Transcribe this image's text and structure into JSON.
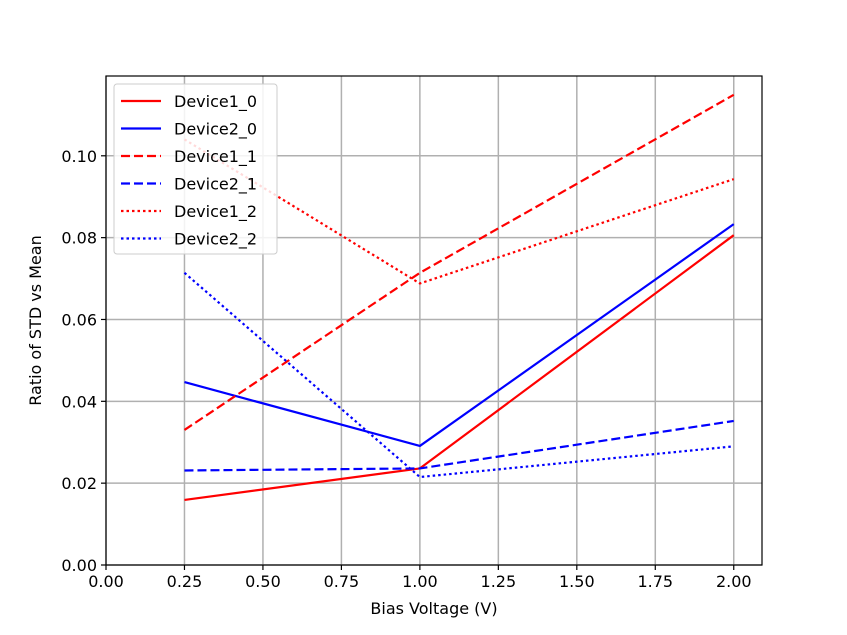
{
  "chart_data": {
    "type": "line",
    "title": "",
    "xlabel": "Bias Voltage (V)",
    "ylabel": "Ratio of STD vs Mean",
    "xlim": [
      0.0,
      2.09
    ],
    "ylim": [
      0.0,
      0.1195
    ],
    "xticks": [
      0.0,
      0.25,
      0.5,
      0.75,
      1.0,
      1.25,
      1.5,
      1.75,
      2.0
    ],
    "xtick_labels": [
      "0.00",
      "0.25",
      "0.50",
      "0.75",
      "1.00",
      "1.25",
      "1.50",
      "1.75",
      "2.00"
    ],
    "yticks": [
      0.0,
      0.02,
      0.04,
      0.06,
      0.08,
      0.1
    ],
    "ytick_labels": [
      "0.00",
      "0.02",
      "0.04",
      "0.06",
      "0.08",
      "0.10"
    ],
    "grid": true,
    "legend_position": "top-left",
    "x": [
      0.25,
      1.0,
      2.0
    ],
    "series": [
      {
        "name": "Device1_0",
        "values": [
          0.0159,
          0.0236,
          0.0806
        ],
        "color": "#ff0000",
        "style": "solid"
      },
      {
        "name": "Device2_0",
        "values": [
          0.0447,
          0.0291,
          0.0833
        ],
        "color": "#0000ff",
        "style": "solid"
      },
      {
        "name": "Device1_1",
        "values": [
          0.033,
          0.0714,
          0.1149
        ],
        "color": "#ff0000",
        "style": "dashed"
      },
      {
        "name": "Device2_1",
        "values": [
          0.0231,
          0.0236,
          0.0352
        ],
        "color": "#0000ff",
        "style": "dashed"
      },
      {
        "name": "Device1_2",
        "values": [
          0.104,
          0.0688,
          0.0943
        ],
        "color": "#ff0000",
        "style": "dotted"
      },
      {
        "name": "Device2_2",
        "values": [
          0.0714,
          0.0215,
          0.029
        ],
        "color": "#0000ff",
        "style": "dotted"
      }
    ]
  }
}
